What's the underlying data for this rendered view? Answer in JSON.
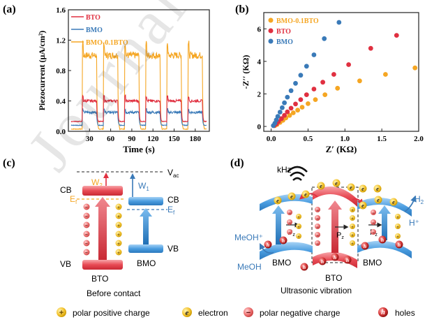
{
  "watermark": "Journal Pre-proof",
  "panel_labels": {
    "a": "(a)",
    "b": "(b)",
    "c": "(c)",
    "d": "(d)"
  },
  "colors": {
    "bto": "#e03040",
    "bmo": "#3a7ab8",
    "bmo01": "#f5a623",
    "red_band": "#e84b55",
    "blue_band": "#4a9de0"
  },
  "chart_data": [
    {
      "type": "line",
      "title": "",
      "xlabel": "Time (s)",
      "ylabel": "Piezocurrent (µA/cm²)",
      "xlim": [
        0,
        200
      ],
      "ylim": [
        0,
        1.6
      ],
      "x_ticks": [
        "30",
        "60",
        "90",
        "120",
        "150",
        "180"
      ],
      "y_ticks": [
        "0.0",
        "0.4",
        "0.8",
        "1.2",
        "1.6"
      ],
      "on_intervals": [
        [
          20,
          40
        ],
        [
          50,
          70
        ],
        [
          80,
          100
        ],
        [
          110,
          130
        ],
        [
          140,
          160
        ],
        [
          170,
          190
        ]
      ],
      "series": [
        {
          "name": "BTO",
          "on": 0.4,
          "off": 0.13
        },
        {
          "name": "BMO",
          "on": 0.25,
          "off": 0.08
        },
        {
          "name": "BMO-0.1BTO",
          "on": 1.0,
          "off": 0.03
        }
      ]
    },
    {
      "type": "scatter",
      "title": "",
      "xlabel": "Z′ (KΩ)",
      "ylabel": "-Z′′ (KΩ)",
      "xlim": [
        -0.1,
        2.0
      ],
      "ylim": [
        -0.3,
        7
      ],
      "x_ticks": [
        "0.0",
        "0.5",
        "1.0",
        "1.5",
        "2.0"
      ],
      "y_ticks": [
        "0",
        "2",
        "4",
        "6"
      ],
      "series": [
        {
          "name": "BMO-0.1BTO",
          "x": [
            0.05,
            0.08,
            0.12,
            0.16,
            0.2,
            0.25,
            0.3,
            0.36,
            0.42,
            0.5,
            0.6,
            0.73,
            0.9,
            1.2,
            1.55,
            1.95
          ],
          "y": [
            0.05,
            0.12,
            0.25,
            0.38,
            0.52,
            0.68,
            0.84,
            1.0,
            1.18,
            1.4,
            1.65,
            1.95,
            2.35,
            2.8,
            3.2,
            3.6
          ]
        },
        {
          "name": "BTO",
          "x": [
            0.04,
            0.07,
            0.1,
            0.14,
            0.18,
            0.22,
            0.27,
            0.33,
            0.4,
            0.48,
            0.58,
            0.7,
            0.85,
            1.05,
            1.35,
            1.7
          ],
          "y": [
            0.05,
            0.15,
            0.3,
            0.48,
            0.68,
            0.9,
            1.12,
            1.38,
            1.65,
            1.95,
            2.3,
            2.72,
            3.2,
            3.8,
            4.8,
            5.6
          ]
        },
        {
          "name": "BMO",
          "x": [
            0.03,
            0.05,
            0.07,
            0.09,
            0.12,
            0.15,
            0.18,
            0.22,
            0.27,
            0.33,
            0.4,
            0.48,
            0.58,
            0.72,
            0.92
          ],
          "y": [
            0.05,
            0.2,
            0.4,
            0.62,
            0.88,
            1.15,
            1.45,
            1.8,
            2.2,
            2.65,
            3.15,
            3.7,
            4.4,
            5.4,
            6.4
          ]
        }
      ]
    }
  ],
  "panel_c": {
    "vac": "V",
    "vac_sub": "ac",
    "w2": "W",
    "w2_sub": "2",
    "w1": "W",
    "w1_sub": "1",
    "ef_left": "E",
    "ef_left_sub": "f",
    "ef_right": "E",
    "ef_right_sub": "f",
    "cb_left": "CB",
    "cb_right": "CB",
    "vb_left": "VB",
    "vb_right": "VB",
    "name_left": "BTO",
    "name_right": "BMO",
    "caption": "Before contact"
  },
  "panel_d": {
    "khz": "kHz",
    "meoh_plus": "MeOH⁺",
    "meoh": "MeOH",
    "bmo_left": "BMO",
    "bmo_right": "BMO",
    "bto": "BTO",
    "h2": "H",
    "h2_sub": "2",
    "h_plus": "H⁺",
    "pz": "P",
    "pz_sub": "z",
    "caption": "Ultrasonic vibration"
  },
  "legend": {
    "pos_symbol": "+",
    "pos_label": "polar positive charge",
    "e_symbol": "e",
    "e_label": "electron",
    "neg_symbol": "−",
    "neg_label": "polar negative charge",
    "h_symbol": "h",
    "h_label": "holes"
  }
}
